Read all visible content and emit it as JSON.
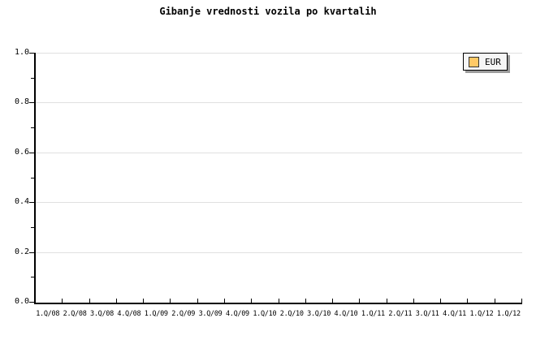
{
  "chart_data": {
    "type": "line",
    "title": "Gibanje vrednosti vozila po kvartalih",
    "categories": [
      "1.Q/08",
      "2.Q/08",
      "3.Q/08",
      "4.Q/08",
      "1.Q/09",
      "2.Q/09",
      "3.Q/09",
      "4.Q/09",
      "1.Q/10",
      "2.Q/10",
      "3.Q/10",
      "4.Q/10",
      "1.Q/11",
      "2.Q/11",
      "3.Q/11",
      "4.Q/11",
      "1.Q/12",
      "1.Q/12"
    ],
    "series": [
      {
        "name": "EUR",
        "color": "#FFC966",
        "values": []
      }
    ],
    "xlabel": "",
    "ylabel": "",
    "ylim": [
      0.0,
      1.0
    ],
    "yticks": [
      {
        "value": 1.0,
        "label": "1.0"
      },
      {
        "value": 0.8,
        "label": "0.8"
      },
      {
        "value": 0.6,
        "label": "0.6"
      },
      {
        "value": 0.4,
        "label": "0.4"
      },
      {
        "value": 0.2,
        "label": "0.2"
      },
      {
        "value": 0.0,
        "label": "0.0"
      }
    ],
    "minor_ytick_step": 0.1,
    "grid": "horizontal",
    "legend_position": "top-right"
  },
  "legend": {
    "items": [
      {
        "label": "EUR",
        "swatch_color": "#FFC966"
      }
    ]
  },
  "colors": {
    "background": "#FFFFFF",
    "axis": "#000000",
    "grid": "#E0E0E0",
    "text": "#000000",
    "legend_fill": "#F6F6F6",
    "legend_border": "#000000",
    "legend_shadow": "#9C9C9C"
  }
}
